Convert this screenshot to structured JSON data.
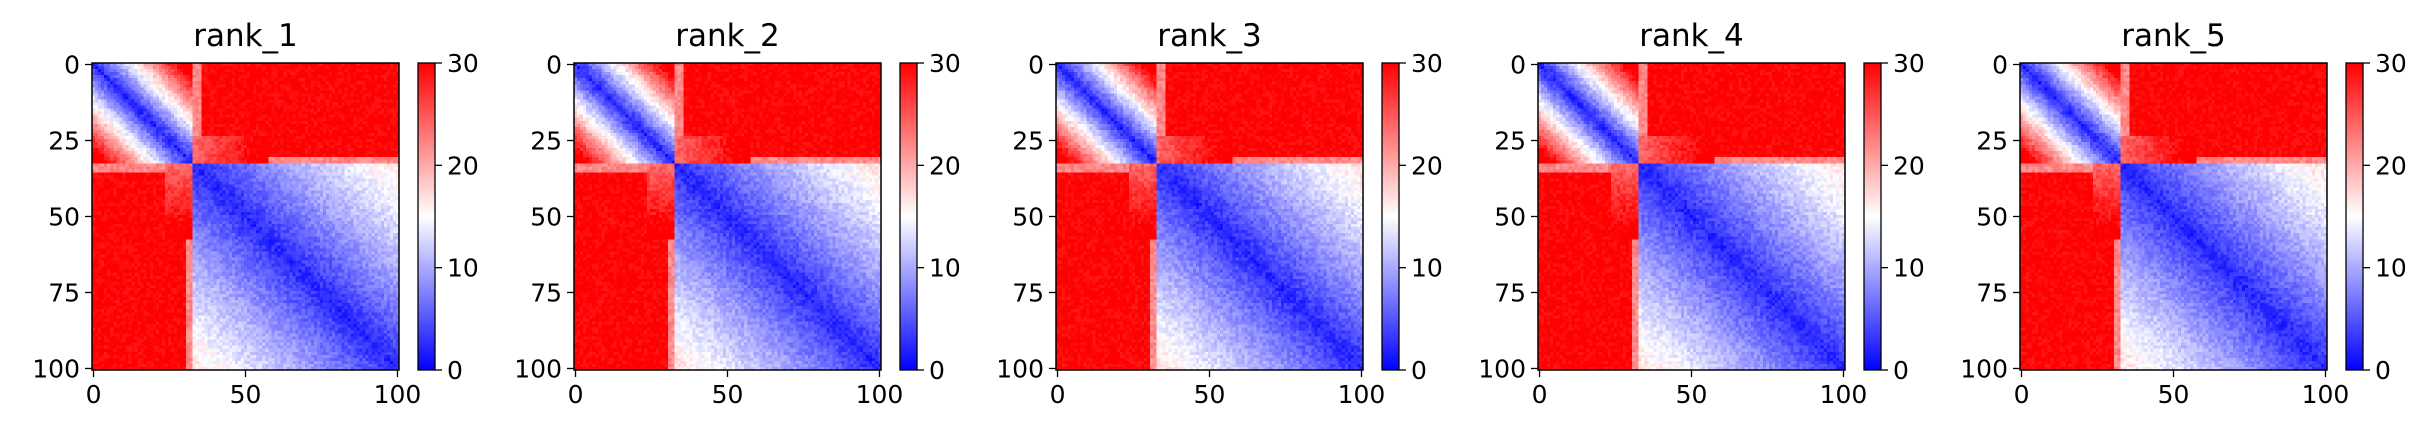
{
  "chart_data": [
    {
      "type": "heatmap",
      "title": "rank_1",
      "x_ticks": [
        "0",
        "50",
        "100"
      ],
      "y_ticks": [
        "0",
        "25",
        "50",
        "75",
        "100"
      ],
      "colorbar_ticks": [
        "0",
        "10",
        "20",
        "30"
      ],
      "xlim": [
        0,
        101
      ],
      "ylim": [
        101,
        0
      ],
      "color_range": [
        0,
        30
      ],
      "colormap": "bwr",
      "colors": {
        "low": "#0000ff",
        "mid": "#ffffff",
        "high": "#ff0000"
      },
      "blocks": [
        [
          0,
          33
        ],
        [
          33,
          101
        ]
      ],
      "values_description_only_for_render": null
    },
    {
      "type": "heatmap",
      "title": "rank_2",
      "x_ticks": [
        "0",
        "50",
        "100"
      ],
      "y_ticks": [
        "0",
        "25",
        "50",
        "75",
        "100"
      ],
      "colorbar_ticks": [
        "0",
        "10",
        "20",
        "30"
      ],
      "xlim": [
        0,
        101
      ],
      "ylim": [
        101,
        0
      ],
      "color_range": [
        0,
        30
      ],
      "colormap": "bwr",
      "colors": {
        "low": "#0000ff",
        "mid": "#ffffff",
        "high": "#ff0000"
      },
      "blocks": [
        [
          0,
          33
        ],
        [
          33,
          101
        ]
      ],
      "values_description_only_for_render": null
    },
    {
      "type": "heatmap",
      "title": "rank_3",
      "x_ticks": [
        "0",
        "50",
        "100"
      ],
      "y_ticks": [
        "0",
        "25",
        "50",
        "75",
        "100"
      ],
      "colorbar_ticks": [
        "0",
        "10",
        "20",
        "30"
      ],
      "xlim": [
        0,
        101
      ],
      "ylim": [
        101,
        0
      ],
      "color_range": [
        0,
        30
      ],
      "colormap": "bwr",
      "colors": {
        "low": "#0000ff",
        "mid": "#ffffff",
        "high": "#ff0000"
      },
      "blocks": [
        [
          0,
          33
        ],
        [
          33,
          101
        ]
      ],
      "values_description_only_for_render": null
    },
    {
      "type": "heatmap",
      "title": "rank_4",
      "x_ticks": [
        "0",
        "50",
        "100"
      ],
      "y_ticks": [
        "0",
        "25",
        "50",
        "75",
        "100"
      ],
      "colorbar_ticks": [
        "0",
        "10",
        "20",
        "30"
      ],
      "xlim": [
        0,
        101
      ],
      "ylim": [
        101,
        0
      ],
      "color_range": [
        0,
        30
      ],
      "colormap": "bwr",
      "colors": {
        "low": "#0000ff",
        "mid": "#ffffff",
        "high": "#ff0000"
      },
      "blocks": [
        [
          0,
          33
        ],
        [
          33,
          101
        ]
      ],
      "values_description_only_for_render": null
    },
    {
      "type": "heatmap",
      "title": "rank_5",
      "x_ticks": [
        "0",
        "50",
        "100"
      ],
      "y_ticks": [
        "0",
        "25",
        "50",
        "75",
        "100"
      ],
      "colorbar_ticks": [
        "0",
        "10",
        "20",
        "30"
      ],
      "xlim": [
        0,
        101
      ],
      "ylim": [
        101,
        0
      ],
      "color_range": [
        0,
        30
      ],
      "colormap": "bwr",
      "colors": {
        "low": "#0000ff",
        "mid": "#ffffff",
        "high": "#ff0000"
      },
      "blocks": [
        [
          0,
          33
        ],
        [
          33,
          101
        ]
      ],
      "values_description_only_for_render": null
    }
  ]
}
